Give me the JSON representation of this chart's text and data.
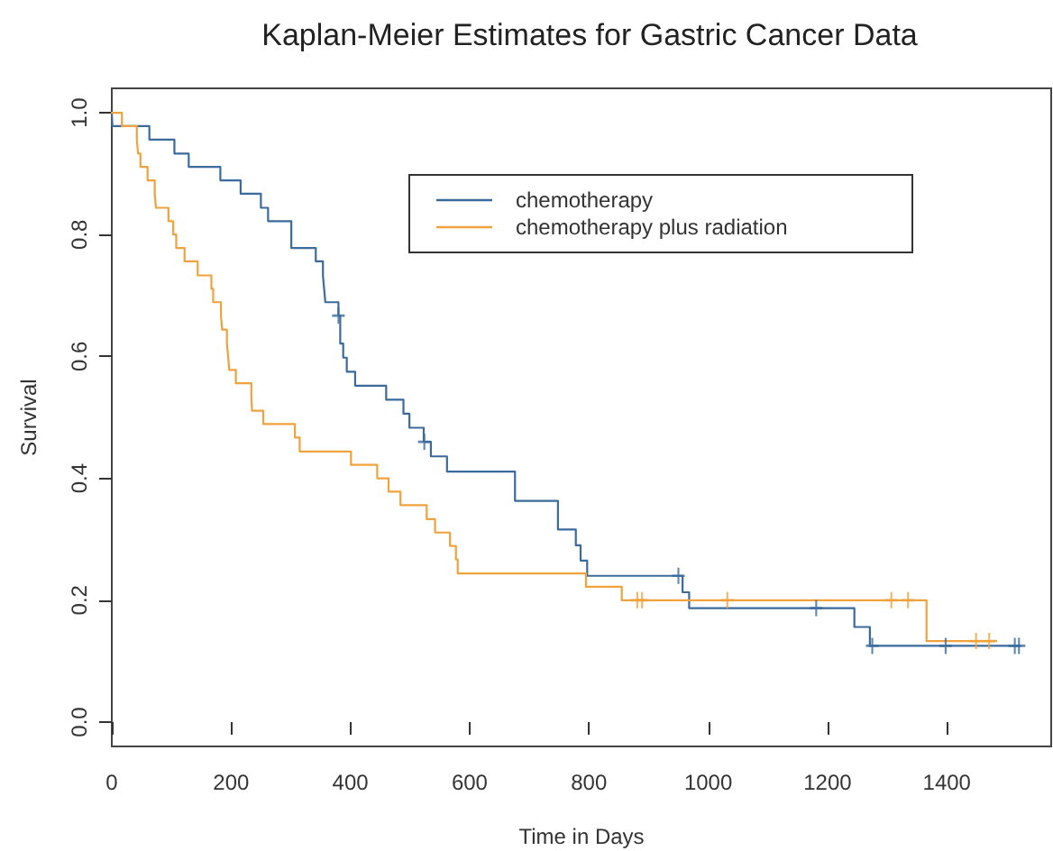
{
  "chart_data": {
    "type": "step",
    "title": "Kaplan-Meier Estimates for Gastric Cancer Data",
    "xlabel": "Time in Days",
    "ylabel": "Survival",
    "xlim": [
      0,
      1575
    ],
    "xticks": [
      0,
      200,
      400,
      600,
      800,
      1000,
      1200,
      1400
    ],
    "ylim": [
      -0.04,
      1.04
    ],
    "yticks": [
      {
        "value": 0,
        "label": "0.0"
      },
      0.2,
      0.4,
      0.6,
      0.8,
      {
        "value": 1,
        "label": "1.0"
      }
    ],
    "grid": false,
    "legend": "top",
    "series": [
      {
        "name": "chemotherapy",
        "color": "#3a6b9c",
        "x": [
          0,
          1,
          63,
          105,
          129,
          182,
          216,
          250,
          262,
          301,
          342,
          354,
          356,
          358,
          380,
          383,
          388,
          394,
          408,
          460,
          489,
          499,
          523,
          535,
          562,
          676,
          748,
          778,
          786,
          797,
          957,
          968,
          1245,
          1271,
          1521
        ],
        "values": [
          1.0,
          0.978,
          0.956,
          0.933,
          0.911,
          0.889,
          0.867,
          0.844,
          0.822,
          0.778,
          0.756,
          0.733,
          0.711,
          0.689,
          0.667,
          0.621,
          0.598,
          0.575,
          0.552,
          0.529,
          0.506,
          0.483,
          0.46,
          0.436,
          0.411,
          0.363,
          0.316,
          0.29,
          0.265,
          0.24,
          0.213,
          0.187,
          0.156,
          0.125,
          0.125
        ]
      },
      {
        "name": "chemotherapy plus radiation",
        "color": "#f0a23c",
        "x": [
          0,
          17,
          42,
          44,
          48,
          60,
          72,
          74,
          95,
          103,
          108,
          122,
          144,
          167,
          170,
          183,
          185,
          193,
          195,
          197,
          208,
          234,
          235,
          254,
          307,
          315,
          401,
          445,
          464,
          484,
          528,
          542,
          567,
          577,
          580,
          795,
          855,
          1366,
          1483
        ],
        "values": [
          1.0,
          0.978,
          0.956,
          0.933,
          0.911,
          0.889,
          0.867,
          0.844,
          0.822,
          0.8,
          0.778,
          0.756,
          0.733,
          0.711,
          0.689,
          0.667,
          0.644,
          0.622,
          0.6,
          0.578,
          0.556,
          0.533,
          0.511,
          0.489,
          0.467,
          0.444,
          0.422,
          0.4,
          0.378,
          0.356,
          0.333,
          0.311,
          0.289,
          0.267,
          0.244,
          0.222,
          0.2,
          0.133,
          0.133
        ]
      },
      {
        "type": "scatter",
        "marker": "cross",
        "color": "#3a6b9c",
        "x": [
          380,
          524,
          950,
          1181,
          1275,
          1398,
          1514,
          1521
        ],
        "values": [
          0.667,
          0.46,
          0.24,
          0.187,
          0.125,
          0.125,
          0.125,
          0.125
        ]
      },
      {
        "type": "scatter",
        "marker": "cross",
        "color": "#f0a23c",
        "x": [
          881,
          889,
          1032,
          1307,
          1335,
          1449,
          1471
        ],
        "values": [
          0.2,
          0.2,
          0.2,
          0.2,
          0.2,
          0.133,
          0.133
        ]
      }
    ]
  }
}
